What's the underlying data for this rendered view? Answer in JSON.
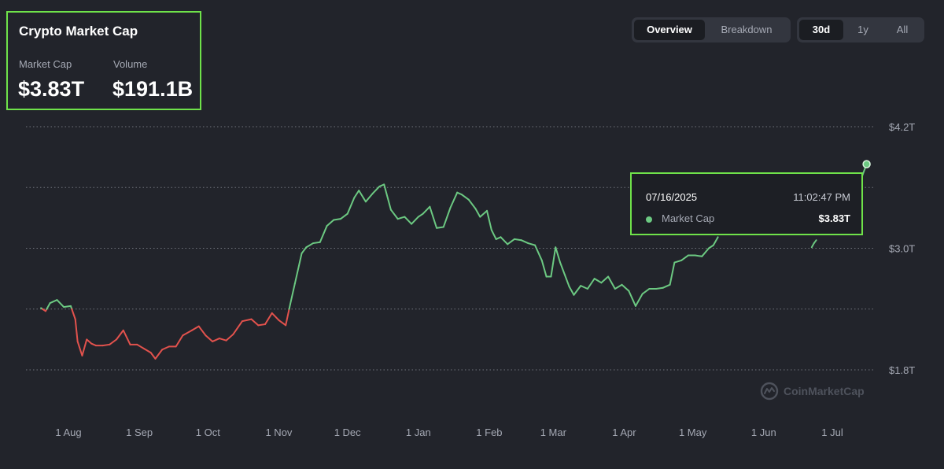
{
  "header": {
    "title": "Crypto Market Cap",
    "stats": [
      {
        "label": "Market Cap",
        "value": "$3.83T"
      },
      {
        "label": "Volume",
        "value": "$191.1B"
      }
    ]
  },
  "view_tabs": [
    {
      "label": "Overview",
      "active": true
    },
    {
      "label": "Breakdown",
      "active": false
    }
  ],
  "range_tabs": [
    {
      "label": "30d",
      "active": true
    },
    {
      "label": "1y",
      "active": false
    },
    {
      "label": "All",
      "active": false
    }
  ],
  "tooltip": {
    "date": "07/16/2025",
    "time": "11:02:47 PM",
    "series_label": "Market Cap",
    "value": "$3.83T"
  },
  "watermark": "CoinMarketCap",
  "colors": {
    "up": "#6cc982",
    "down": "#e2524d",
    "highlight_border": "#6fe24a",
    "background": "#22242b"
  },
  "chart_data": {
    "type": "line",
    "title": "",
    "xlabel": "",
    "ylabel": "",
    "y_axis_position": "right",
    "y_ticks": [
      {
        "value": 4.2,
        "label": "$4.2T"
      },
      {
        "value": 3.0,
        "label": "$3.0T"
      },
      {
        "value": 1.8,
        "label": "$1.8T"
      }
    ],
    "ylim": [
      1.8,
      4.2
    ],
    "xlim": [
      "2025-07-17",
      "2025-07-16"
    ],
    "x_ticks": [
      {
        "date": "2024-08-01",
        "label": "1 Aug"
      },
      {
        "date": "2024-09-01",
        "label": "1 Sep"
      },
      {
        "date": "2024-10-01",
        "label": "1 Oct"
      },
      {
        "date": "2024-11-01",
        "label": "1 Nov"
      },
      {
        "date": "2024-12-01",
        "label": "1 Dec"
      },
      {
        "date": "2025-01-01",
        "label": "1 Jan"
      },
      {
        "date": "2025-02-01",
        "label": "1 Feb"
      },
      {
        "date": "2025-03-01",
        "label": "1 Mar"
      },
      {
        "date": "2025-04-01",
        "label": "1 Apr"
      },
      {
        "date": "2025-05-01",
        "label": "1 May"
      },
      {
        "date": "2025-06-01",
        "label": "1 Jun"
      },
      {
        "date": "2025-07-01",
        "label": "1 Jul"
      }
    ],
    "grid": true,
    "baseline": 2.4,
    "series": [
      {
        "points": [
          [
            "2024-07-20",
            2.41
          ],
          [
            "2024-07-22",
            2.38
          ],
          [
            "2024-07-24",
            2.46
          ],
          [
            "2024-07-27",
            2.49
          ],
          [
            "2024-07-30",
            2.42
          ],
          [
            "2024-08-02",
            2.43
          ],
          [
            "2024-08-04",
            2.3
          ],
          [
            "2024-08-05",
            2.08
          ],
          [
            "2024-08-07",
            1.94
          ],
          [
            "2024-08-09",
            2.1
          ],
          [
            "2024-08-11",
            2.06
          ],
          [
            "2024-08-13",
            2.04
          ],
          [
            "2024-08-16",
            2.04
          ],
          [
            "2024-08-19",
            2.05
          ],
          [
            "2024-08-22",
            2.1
          ],
          [
            "2024-08-25",
            2.19
          ],
          [
            "2024-08-28",
            2.05
          ],
          [
            "2024-08-31",
            2.05
          ],
          [
            "2024-09-03",
            2.01
          ],
          [
            "2024-09-06",
            1.97
          ],
          [
            "2024-09-08",
            1.91
          ],
          [
            "2024-09-11",
            2.0
          ],
          [
            "2024-09-14",
            2.03
          ],
          [
            "2024-09-17",
            2.03
          ],
          [
            "2024-09-20",
            2.14
          ],
          [
            "2024-09-24",
            2.19
          ],
          [
            "2024-09-27",
            2.23
          ],
          [
            "2024-09-30",
            2.14
          ],
          [
            "2024-10-03",
            2.08
          ],
          [
            "2024-10-06",
            2.11
          ],
          [
            "2024-10-09",
            2.09
          ],
          [
            "2024-10-12",
            2.15
          ],
          [
            "2024-10-16",
            2.28
          ],
          [
            "2024-10-20",
            2.3
          ],
          [
            "2024-10-23",
            2.24
          ],
          [
            "2024-10-26",
            2.25
          ],
          [
            "2024-10-29",
            2.36
          ],
          [
            "2024-11-01",
            2.29
          ],
          [
            "2024-11-04",
            2.24
          ],
          [
            "2024-11-06",
            2.45
          ],
          [
            "2024-11-08",
            2.65
          ],
          [
            "2024-11-11",
            2.95
          ],
          [
            "2024-11-13",
            3.01
          ],
          [
            "2024-11-16",
            3.05
          ],
          [
            "2024-11-19",
            3.06
          ],
          [
            "2024-11-22",
            3.22
          ],
          [
            "2024-11-25",
            3.28
          ],
          [
            "2024-11-28",
            3.29
          ],
          [
            "2024-12-01",
            3.34
          ],
          [
            "2024-12-04",
            3.5
          ],
          [
            "2024-12-06",
            3.57
          ],
          [
            "2024-12-09",
            3.46
          ],
          [
            "2024-12-12",
            3.54
          ],
          [
            "2024-12-15",
            3.61
          ],
          [
            "2024-12-17",
            3.63
          ],
          [
            "2024-12-20",
            3.38
          ],
          [
            "2024-12-23",
            3.29
          ],
          [
            "2024-12-26",
            3.31
          ],
          [
            "2024-12-29",
            3.24
          ],
          [
            "2025-01-01",
            3.31
          ],
          [
            "2025-01-03",
            3.34
          ],
          [
            "2025-01-06",
            3.41
          ],
          [
            "2025-01-09",
            3.2
          ],
          [
            "2025-01-12",
            3.21
          ],
          [
            "2025-01-15",
            3.4
          ],
          [
            "2025-01-18",
            3.55
          ],
          [
            "2025-01-20",
            3.53
          ],
          [
            "2025-01-23",
            3.48
          ],
          [
            "2025-01-26",
            3.39
          ],
          [
            "2025-01-28",
            3.31
          ],
          [
            "2025-01-31",
            3.37
          ],
          [
            "2025-02-02",
            3.18
          ],
          [
            "2025-02-04",
            3.09
          ],
          [
            "2025-02-06",
            3.11
          ],
          [
            "2025-02-09",
            3.04
          ],
          [
            "2025-02-12",
            3.09
          ],
          [
            "2025-02-15",
            3.08
          ],
          [
            "2025-02-18",
            3.05
          ],
          [
            "2025-02-21",
            3.03
          ],
          [
            "2025-02-24",
            2.88
          ],
          [
            "2025-02-26",
            2.72
          ],
          [
            "2025-02-28",
            2.72
          ],
          [
            "2025-03-02",
            3.01
          ],
          [
            "2025-03-04",
            2.86
          ],
          [
            "2025-03-06",
            2.74
          ],
          [
            "2025-03-08",
            2.62
          ],
          [
            "2025-03-10",
            2.54
          ],
          [
            "2025-03-13",
            2.63
          ],
          [
            "2025-03-16",
            2.6
          ],
          [
            "2025-03-19",
            2.7
          ],
          [
            "2025-03-22",
            2.66
          ],
          [
            "2025-03-25",
            2.72
          ],
          [
            "2025-03-28",
            2.6
          ],
          [
            "2025-03-31",
            2.64
          ],
          [
            "2025-04-03",
            2.58
          ],
          [
            "2025-04-06",
            2.43
          ],
          [
            "2025-04-09",
            2.55
          ],
          [
            "2025-04-12",
            2.6
          ],
          [
            "2025-04-15",
            2.6
          ],
          [
            "2025-04-18",
            2.61
          ],
          [
            "2025-04-21",
            2.64
          ],
          [
            "2025-04-23",
            2.86
          ],
          [
            "2025-04-26",
            2.88
          ],
          [
            "2025-04-29",
            2.93
          ],
          [
            "2025-05-02",
            2.93
          ],
          [
            "2025-05-05",
            2.92
          ],
          [
            "2025-05-08",
            3.0
          ],
          [
            "2025-05-10",
            3.03
          ],
          [
            "2025-05-12",
            3.11
          ],
          [
            "2025-06-22",
            3.01
          ],
          [
            "2025-06-23",
            3.05
          ],
          [
            "2025-06-24",
            3.08
          ],
          [
            "2025-07-10",
            3.49
          ],
          [
            "2025-07-12",
            3.63
          ],
          [
            "2025-07-14",
            3.71
          ],
          [
            "2025-07-16",
            3.83
          ]
        ]
      }
    ],
    "highlight_point": {
      "date": "2025-07-16",
      "value": 3.83
    }
  }
}
